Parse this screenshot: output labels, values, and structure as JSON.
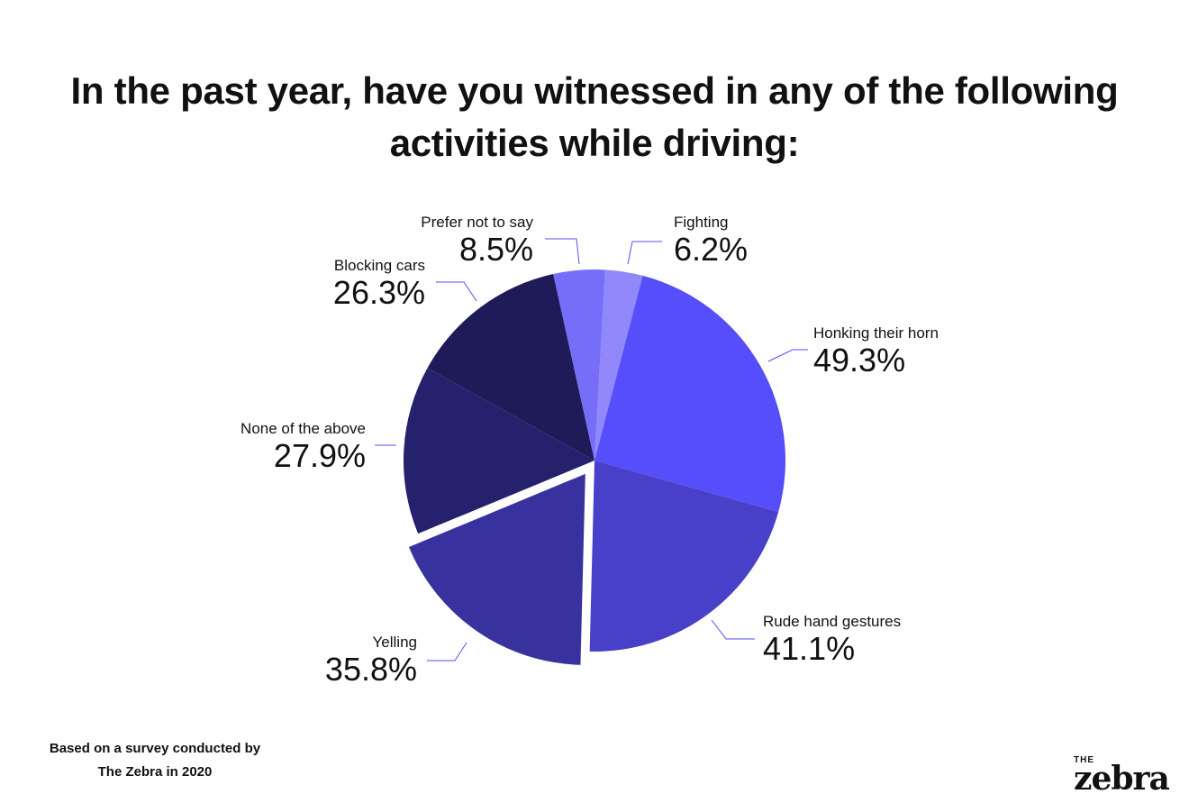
{
  "chart_data": {
    "type": "pie",
    "title": "In the past year, have you witnessed in any of the following activities while driving:",
    "slices": [
      {
        "label": "Fighting",
        "value": 6.2,
        "display": "6.2%",
        "color": "#9088fb"
      },
      {
        "label": "Honking their horn",
        "value": 49.3,
        "display": "49.3%",
        "color": "#564dfb"
      },
      {
        "label": "Rude hand gestures",
        "value": 41.1,
        "display": "41.1%",
        "color": "#4840c8"
      },
      {
        "label": "Yelling",
        "value": 35.8,
        "display": "35.8%",
        "color": "#38329e",
        "exploded": true
      },
      {
        "label": "None of the above",
        "value": 27.9,
        "display": "27.9%",
        "color": "#26216c"
      },
      {
        "label": "Blocking cars",
        "value": 26.3,
        "display": "26.3%",
        "color": "#1f1b58"
      },
      {
        "label": "Prefer not to say",
        "value": 8.5,
        "display": "8.5%",
        "color": "#766ef8"
      }
    ],
    "leader_color": "#564dfb"
  },
  "footer": {
    "source_line1": "Based on a survey conducted by",
    "source_line2": "The Zebra in 2020"
  },
  "logo": {
    "small": "THE",
    "big": "zebra"
  }
}
